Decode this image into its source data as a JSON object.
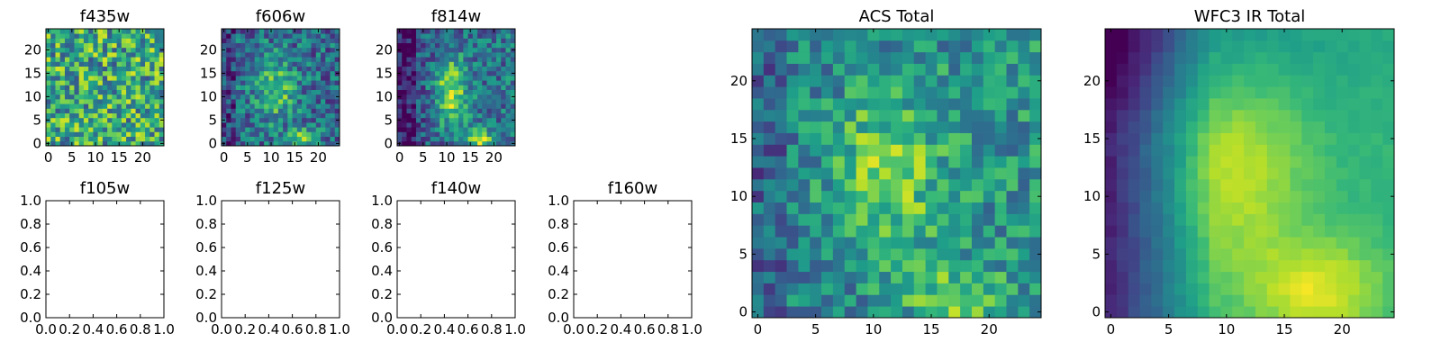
{
  "chart_data": [
    {
      "type": "heatmap",
      "title": "f435w",
      "xticks": [
        "0",
        "5",
        "10",
        "15",
        "20"
      ],
      "yticks": [
        "0",
        "5",
        "10",
        "15",
        "20"
      ],
      "xlim": [
        -0.5,
        24.5
      ],
      "ylim": [
        -0.5,
        24.5
      ],
      "grid": false,
      "colormap": "viridis",
      "has_data": true
    },
    {
      "type": "heatmap",
      "title": "f606w",
      "xticks": [
        "0",
        "5",
        "10",
        "15",
        "20"
      ],
      "yticks": [
        "0",
        "5",
        "10",
        "15",
        "20"
      ],
      "xlim": [
        -0.5,
        24.5
      ],
      "ylim": [
        -0.5,
        24.5
      ],
      "grid": false,
      "colormap": "viridis",
      "has_data": true
    },
    {
      "type": "heatmap",
      "title": "f814w",
      "xticks": [
        "0",
        "5",
        "10",
        "15",
        "20"
      ],
      "yticks": [
        "0",
        "5",
        "10",
        "15",
        "20"
      ],
      "xlim": [
        -0.5,
        24.5
      ],
      "ylim": [
        -0.5,
        24.5
      ],
      "grid": false,
      "colormap": "viridis",
      "has_data": true
    },
    {
      "type": "heatmap",
      "title": "f105w",
      "xticks": [
        "0.0",
        "0.2",
        "0.4",
        "0.6",
        "0.8",
        "1.0"
      ],
      "yticks": [
        "0.0",
        "0.2",
        "0.4",
        "0.6",
        "0.8",
        "1.0"
      ],
      "xlim": [
        0,
        1
      ],
      "ylim": [
        0,
        1
      ],
      "grid": false,
      "has_data": false
    },
    {
      "type": "heatmap",
      "title": "f125w",
      "xticks": [
        "0.0",
        "0.2",
        "0.4",
        "0.6",
        "0.8",
        "1.0"
      ],
      "yticks": [
        "0.0",
        "0.2",
        "0.4",
        "0.6",
        "0.8",
        "1.0"
      ],
      "xlim": [
        0,
        1
      ],
      "ylim": [
        0,
        1
      ],
      "grid": false,
      "has_data": false
    },
    {
      "type": "heatmap",
      "title": "f140w",
      "xticks": [
        "0.0",
        "0.2",
        "0.4",
        "0.6",
        "0.8",
        "1.0"
      ],
      "yticks": [
        "0.0",
        "0.2",
        "0.4",
        "0.6",
        "0.8",
        "1.0"
      ],
      "xlim": [
        0,
        1
      ],
      "ylim": [
        0,
        1
      ],
      "grid": false,
      "has_data": false
    },
    {
      "type": "heatmap",
      "title": "f160w",
      "xticks": [
        "0.0",
        "0.2",
        "0.4",
        "0.6",
        "0.8",
        "1.0"
      ],
      "yticks": [
        "0.0",
        "0.2",
        "0.4",
        "0.6",
        "0.8",
        "1.0"
      ],
      "xlim": [
        0,
        1
      ],
      "ylim": [
        0,
        1
      ],
      "grid": false,
      "has_data": false
    },
    {
      "type": "heatmap",
      "title": "ACS Total",
      "xticks": [
        "0",
        "5",
        "10",
        "15",
        "20"
      ],
      "yticks": [
        "0",
        "5",
        "10",
        "15",
        "20"
      ],
      "xlim": [
        -0.5,
        24.5
      ],
      "ylim": [
        -0.5,
        24.5
      ],
      "grid": false,
      "colormap": "viridis",
      "has_data": true
    },
    {
      "type": "heatmap",
      "title": "WFC3 IR Total",
      "xticks": [
        "0",
        "5",
        "10",
        "15",
        "20"
      ],
      "yticks": [
        "0",
        "5",
        "10",
        "15",
        "20"
      ],
      "xlim": [
        -0.5,
        24.5
      ],
      "ylim": [
        -0.5,
        24.5
      ],
      "grid": false,
      "colormap": "viridis",
      "has_data": true
    }
  ]
}
